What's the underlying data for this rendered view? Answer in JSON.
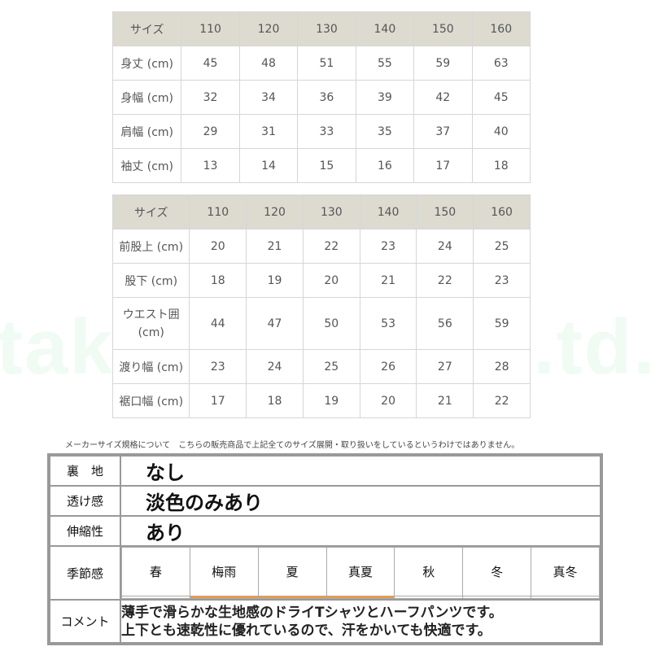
{
  "tops_table": {
    "header": [
      "サイズ",
      "110",
      "120",
      "130",
      "140",
      "150",
      "160"
    ],
    "rows": [
      [
        "身丈 (cm)",
        "45",
        "48",
        "51",
        "55",
        "59",
        "63"
      ],
      [
        "身幅 (cm)",
        "32",
        "34",
        "36",
        "39",
        "42",
        "45"
      ],
      [
        "肩幅 (cm)",
        "29",
        "31",
        "33",
        "35",
        "37",
        "40"
      ],
      [
        "袖丈 (cm)",
        "13",
        "14",
        "15",
        "16",
        "17",
        "18"
      ]
    ]
  },
  "bottoms_table": {
    "header": [
      "サイズ",
      "110",
      "120",
      "130",
      "140",
      "150",
      "160"
    ],
    "rows": [
      [
        "前股上 (cm)",
        "20",
        "21",
        "22",
        "23",
        "24",
        "25"
      ],
      [
        "股下 (cm)",
        "18",
        "19",
        "20",
        "21",
        "22",
        "23"
      ],
      [
        "ウエスト囲 (cm)",
        "44",
        "47",
        "50",
        "53",
        "56",
        "59"
      ],
      [
        "渡り幅 (cm)",
        "23",
        "24",
        "25",
        "26",
        "27",
        "28"
      ],
      [
        "裾口幅 (cm)",
        "17",
        "18",
        "19",
        "20",
        "21",
        "22"
      ]
    ]
  },
  "note": "メーカーサイズ規格について　こちらの販売商品で上記全てのサイズ展開・取り扱いをしているというわけではありません。",
  "spec": {
    "lining": {
      "label": "裏　地",
      "value": "なし"
    },
    "sheerness": {
      "label": "透け感",
      "value": "淡色のみあり"
    },
    "stretch": {
      "label": "伸縮性",
      "value": "あり"
    },
    "season": {
      "label": "季節感",
      "items": [
        {
          "name": "春",
          "active": false
        },
        {
          "name": "梅雨",
          "active": true
        },
        {
          "name": "夏",
          "active": true
        },
        {
          "name": "真夏",
          "active": true
        },
        {
          "name": "秋",
          "active": false
        },
        {
          "name": "冬",
          "active": false
        },
        {
          "name": "真冬",
          "active": false
        }
      ],
      "active_color": "#fb9830"
    },
    "comment": {
      "label": "コメント",
      "lines": [
        "薄手で滑らかな生地感のドライTシャツとハーフパンツです。",
        "上下とも速乾性に優れているので、汗をかいても快適です。"
      ]
    }
  },
  "colors": {
    "header_bg": "#dddbd0",
    "border": "#d6d6d6"
  }
}
